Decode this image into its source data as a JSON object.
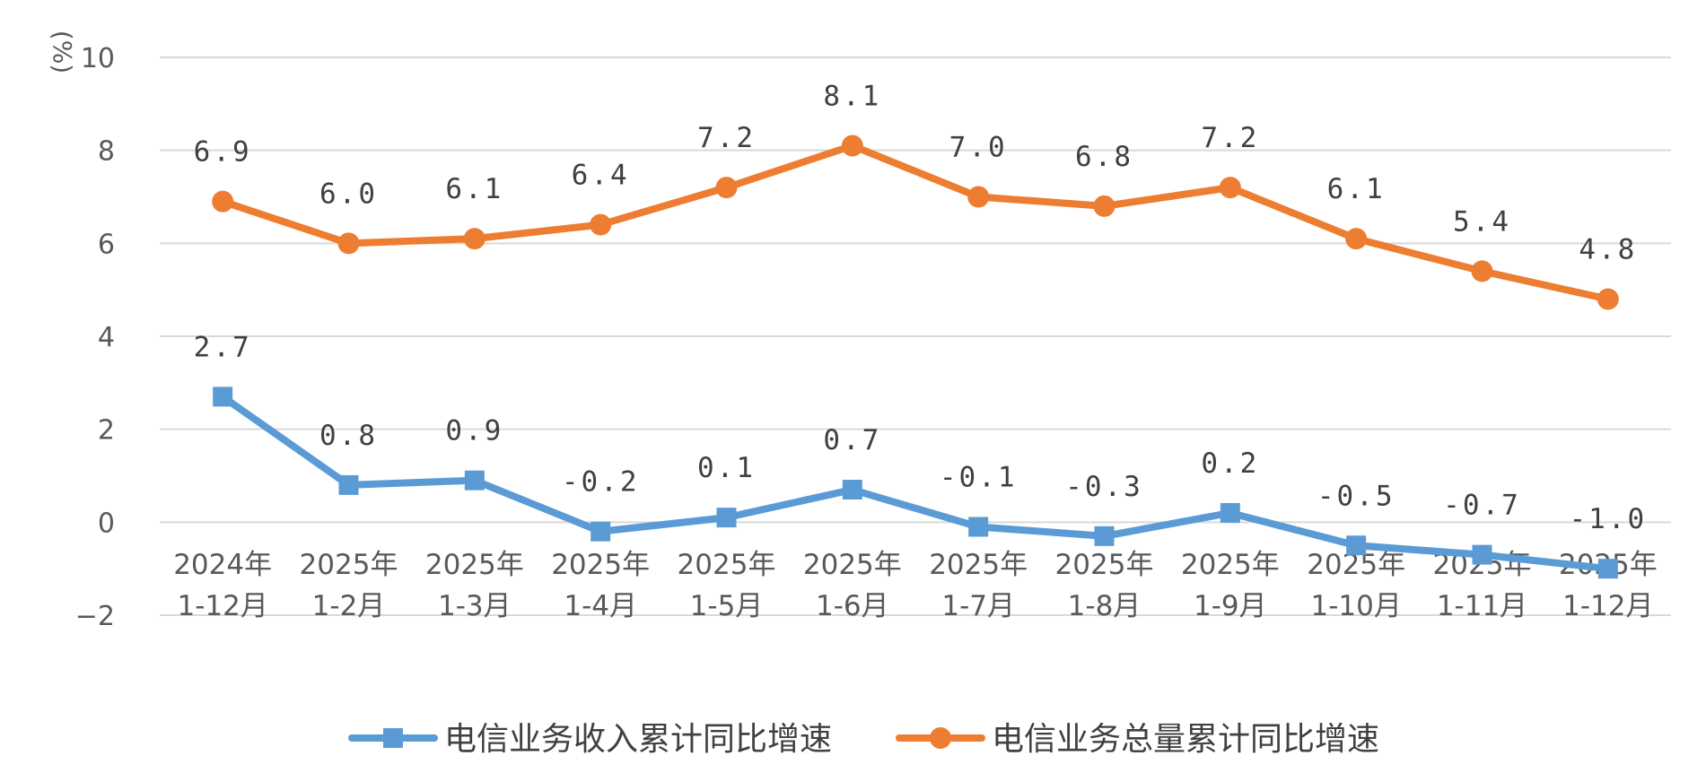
{
  "chart_data": {
    "type": "line",
    "unit_label": "(%)",
    "categories": [
      [
        "2024年",
        "1-12月"
      ],
      [
        "2025年",
        "1-2月"
      ],
      [
        "2025年",
        "1-3月"
      ],
      [
        "2025年",
        "1-4月"
      ],
      [
        "2025年",
        "1-5月"
      ],
      [
        "2025年",
        "1-6月"
      ],
      [
        "2025年",
        "1-7月"
      ],
      [
        "2025年",
        "1-8月"
      ],
      [
        "2025年",
        "1-9月"
      ],
      [
        "2025年",
        "1-10月"
      ],
      [
        "2025年",
        "1-11月"
      ],
      [
        "2025年",
        "1-12月"
      ]
    ],
    "ylim": [
      -2,
      10
    ],
    "yticks": [
      -2,
      0,
      2,
      4,
      6,
      8,
      10
    ],
    "grid": true,
    "legend_position": "bottom",
    "series": [
      {
        "name": "电信业务收入累计同比增速",
        "color": "#5b9bd5",
        "marker": "square",
        "values": [
          2.7,
          0.8,
          0.9,
          -0.2,
          0.1,
          0.7,
          -0.1,
          -0.3,
          0.2,
          -0.5,
          -0.7,
          -1.0
        ],
        "labels": [
          "2.7",
          "0.8",
          "0.9",
          "-0.2",
          "0.1",
          "0.7",
          "-0.1",
          "-0.3",
          "0.2",
          "-0.5",
          "-0.7",
          "-1.0"
        ]
      },
      {
        "name": "电信业务总量累计同比增速",
        "color": "#ed7d31",
        "marker": "circle",
        "values": [
          6.9,
          6.0,
          6.1,
          6.4,
          7.2,
          8.1,
          7.0,
          6.8,
          7.2,
          6.1,
          5.4,
          4.8
        ],
        "labels": [
          "6.9",
          "6.0",
          "6.1",
          "6.4",
          "7.2",
          "8.1",
          "7.0",
          "6.8",
          "7.2",
          "6.1",
          "5.4",
          "4.8"
        ]
      }
    ]
  }
}
